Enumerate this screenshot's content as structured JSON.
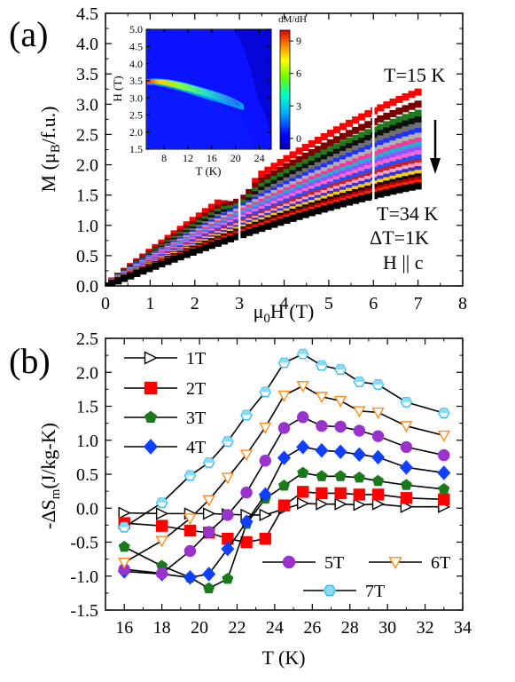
{
  "chart_data": [
    {
      "panel_label": "(a)",
      "type": "line",
      "xlabel_main": "μ",
      "xlabel_sub": "0",
      "xlabel_rest": "H (T)",
      "ylabel_main": "M (μ",
      "ylabel_sub": "B",
      "ylabel_rest": "/f.u.)",
      "xlim": [
        0,
        8
      ],
      "ylim": [
        0,
        4.5
      ],
      "xticks": [
        "0",
        "1",
        "2",
        "3",
        "4",
        "5",
        "6",
        "7",
        "8"
      ],
      "yticks": [
        "0.0",
        "0.5",
        "1.0",
        "1.5",
        "2.0",
        "2.5",
        "3.0",
        "3.5",
        "4.0",
        "4.5"
      ],
      "curve_model": {
        "H_range": [
          0,
          7
        ],
        "T_range": [
          15,
          34
        ],
        "T_step": 1
      },
      "series": [
        {
          "T": 15,
          "M_at_7T": 3.2
        },
        {
          "T": 16,
          "M_at_7T": 3.0
        },
        {
          "T": 17,
          "M_at_7T": 2.85
        },
        {
          "T": 18,
          "M_at_7T": 2.74
        },
        {
          "T": 19,
          "M_at_7T": 2.64
        },
        {
          "T": 20,
          "M_at_7T": 2.55
        },
        {
          "T": 21,
          "M_at_7T": 2.47
        },
        {
          "T": 22,
          "M_at_7T": 2.39
        },
        {
          "T": 23,
          "M_at_7T": 2.32
        },
        {
          "T": 24,
          "M_at_7T": 2.25
        },
        {
          "T": 25,
          "M_at_7T": 2.18
        },
        {
          "T": 26,
          "M_at_7T": 2.11
        },
        {
          "T": 27,
          "M_at_7T": 2.04
        },
        {
          "T": 28,
          "M_at_7T": 1.98
        },
        {
          "T": 29,
          "M_at_7T": 1.92
        },
        {
          "T": 30,
          "M_at_7T": 1.86
        },
        {
          "T": 31,
          "M_at_7T": 1.8
        },
        {
          "T": 32,
          "M_at_7T": 1.75
        },
        {
          "T": 33,
          "M_at_7T": 1.7
        },
        {
          "T": 34,
          "M_at_7T": 1.65
        }
      ],
      "annotations": [
        "T=15 K",
        "T=34 K",
        "ΔT=1K",
        "H || c"
      ],
      "inset": {
        "type": "heatmap",
        "colorbar_label": "dM/dH",
        "xlabel": "T (K)",
        "ylabel": "H (T)",
        "xlim": [
          5,
          26
        ],
        "ylim": [
          1.5,
          5.0
        ],
        "xticks": [
          "8",
          "12",
          "16",
          "20",
          "24"
        ],
        "yticks": [
          "1.5",
          "2.0",
          "2.5",
          "3.0",
          "3.5",
          "4.0",
          "4.5",
          "5.0"
        ],
        "colorbar_ticks": [
          "0",
          "3",
          "6",
          "9"
        ],
        "colorbar_range": [
          -1,
          10
        ]
      }
    },
    {
      "panel_label": "(b)",
      "type": "line",
      "xlabel": "T (K)",
      "ylabel_main": "-ΔS",
      "ylabel_sub": "m",
      "ylabel_rest": "(J/kg-K)",
      "xlim": [
        15,
        34
      ],
      "ylim": [
        -1.5,
        2.5
      ],
      "xticks": [
        "16",
        "18",
        "20",
        "22",
        "24",
        "26",
        "28",
        "30",
        "32",
        "34"
      ],
      "yticks": [
        "-1.5",
        "-1.0",
        "-0.5",
        "0.0",
        "0.5",
        "1.0",
        "1.5",
        "2.0",
        "2.5"
      ],
      "x": [
        16,
        18,
        19.5,
        20.5,
        21.5,
        22.5,
        23.5,
        24.5,
        25.5,
        26.5,
        27.5,
        28.5,
        29.5,
        31,
        33
      ],
      "series": [
        {
          "name": "1T",
          "marker": "triangle-right",
          "color": "#000000",
          "fill": "#ffffff",
          "values": [
            -0.07,
            -0.08,
            -0.08,
            -0.08,
            -0.09,
            -0.1,
            -0.1,
            -0.01,
            0.07,
            0.06,
            0.06,
            0.05,
            0.06,
            0.02,
            0.02
          ]
        },
        {
          "name": "2T",
          "marker": "square",
          "color": "#ff0000",
          "fill": "#ff0000",
          "values": [
            -0.22,
            -0.26,
            -0.33,
            -0.36,
            -0.45,
            -0.5,
            -0.45,
            0.04,
            0.24,
            0.22,
            0.22,
            0.2,
            0.2,
            0.15,
            0.13
          ]
        },
        {
          "name": "3T",
          "marker": "pentagon",
          "color": "#1a7a1a",
          "fill": "#1a7a1a",
          "values": [
            -0.57,
            -0.85,
            -1.02,
            -1.18,
            -1.04,
            -0.23,
            0.14,
            0.33,
            0.52,
            0.47,
            0.47,
            0.45,
            0.4,
            0.34,
            0.28
          ]
        },
        {
          "name": "4T",
          "marker": "diamond",
          "color": "#1040ff",
          "fill": "#1040ff",
          "values": [
            -0.93,
            -0.97,
            -1.02,
            -0.97,
            -0.6,
            -0.2,
            0.2,
            0.74,
            0.9,
            0.85,
            0.83,
            0.79,
            0.75,
            0.6,
            0.52
          ]
        },
        {
          "name": "5T",
          "marker": "circle",
          "color": "#9933cc",
          "fill": "#9933cc",
          "values": [
            -0.9,
            -0.96,
            -0.63,
            -0.35,
            -0.1,
            0.23,
            0.7,
            1.18,
            1.34,
            1.21,
            1.2,
            1.14,
            1.06,
            0.9,
            0.78
          ]
        },
        {
          "name": "6T",
          "marker": "triangle-down",
          "color": "#ff8c1a",
          "fill": "#ffffff",
          "values": [
            -0.8,
            -0.48,
            -0.15,
            0.12,
            0.45,
            0.79,
            1.19,
            1.66,
            1.8,
            1.64,
            1.58,
            1.43,
            1.41,
            1.21,
            1.07
          ]
        },
        {
          "name": "7T",
          "marker": "hexagon",
          "color": "#33bbee",
          "fill": "#88dcf6",
          "values": [
            -0.28,
            0.08,
            0.48,
            0.67,
            0.98,
            1.37,
            1.71,
            2.14,
            2.27,
            2.1,
            2.04,
            1.86,
            1.82,
            1.56,
            1.4
          ]
        }
      ]
    }
  ]
}
